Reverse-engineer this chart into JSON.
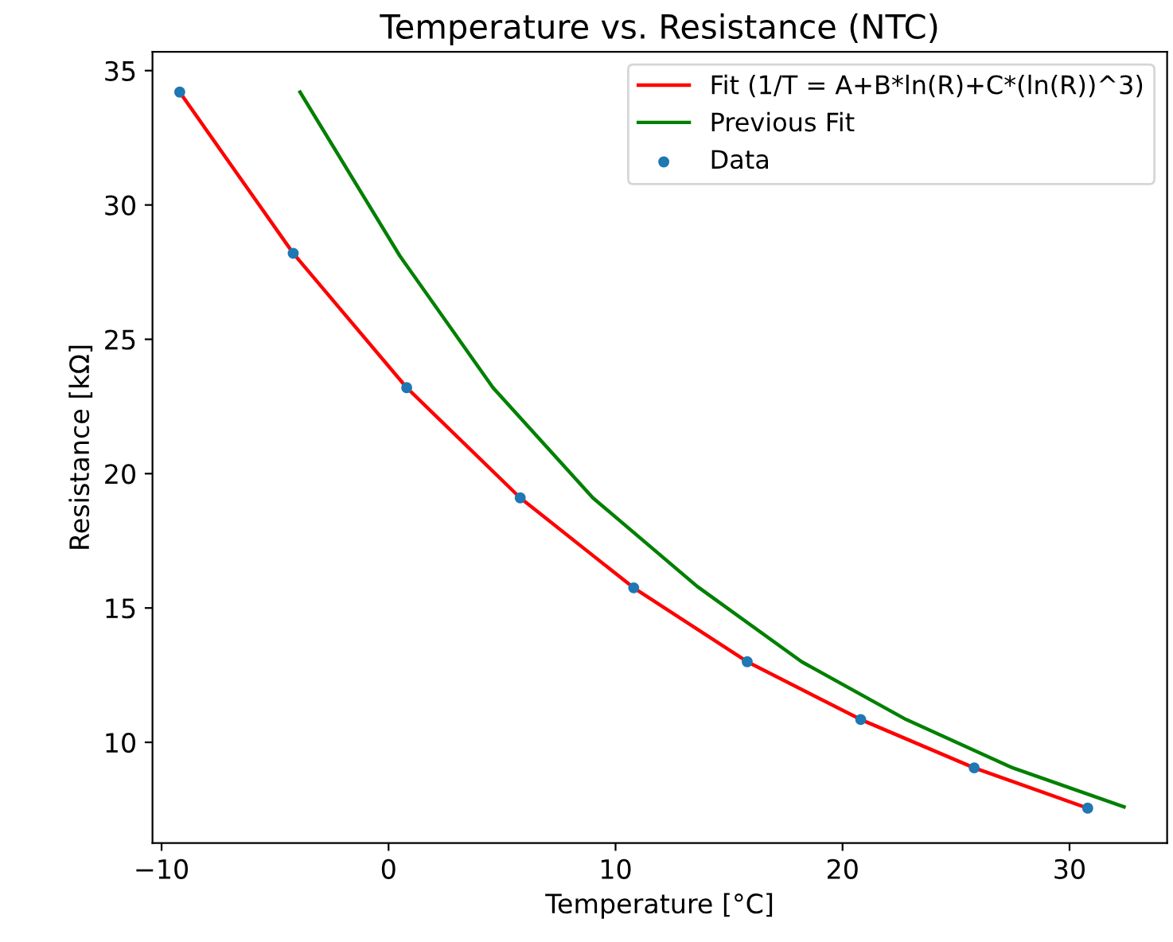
{
  "chart_data": {
    "type": "line",
    "title": "Temperature vs. Resistance (NTC)",
    "xlabel": "Temperature [°C]",
    "ylabel": "Resistance [kΩ]",
    "xlim": [
      -10.4,
      34.3
    ],
    "ylim": [
      6.25,
      35.7
    ],
    "xticks": [
      {
        "value": -10,
        "label": "−10"
      },
      0,
      10,
      20,
      30
    ],
    "yticks": [
      10,
      15,
      20,
      25,
      30,
      35
    ],
    "grid": false,
    "legend": "top right",
    "series": [
      {
        "name": "Fit (1/T = A+B*ln(R)+C*(ln(R))^3)",
        "color": "#ff0000",
        "x": [
          -9.2,
          -4.2,
          0.8,
          5.8,
          10.8,
          15.8,
          20.8,
          25.8,
          30.8
        ],
        "values": [
          34.2,
          28.2,
          23.2,
          19.1,
          15.75,
          13.0,
          10.85,
          9.05,
          7.55
        ]
      },
      {
        "name": "Previous Fit",
        "color": "#008000",
        "x": [
          -3.9,
          0.5,
          4.6,
          9.0,
          13.6,
          18.2,
          22.8,
          27.5,
          32.4
        ],
        "values": [
          34.2,
          28.1,
          23.2,
          19.1,
          15.8,
          13.0,
          10.85,
          9.05,
          7.6
        ]
      },
      {
        "name": "Data",
        "type": "scatter",
        "color": "#1f77b4",
        "marker": "circle",
        "x": [
          -9.2,
          -4.2,
          0.8,
          5.8,
          10.8,
          15.8,
          20.8,
          25.8,
          30.8
        ],
        "values": [
          34.2,
          28.2,
          23.2,
          19.1,
          15.75,
          13.0,
          10.85,
          9.05,
          7.55
        ]
      }
    ]
  }
}
